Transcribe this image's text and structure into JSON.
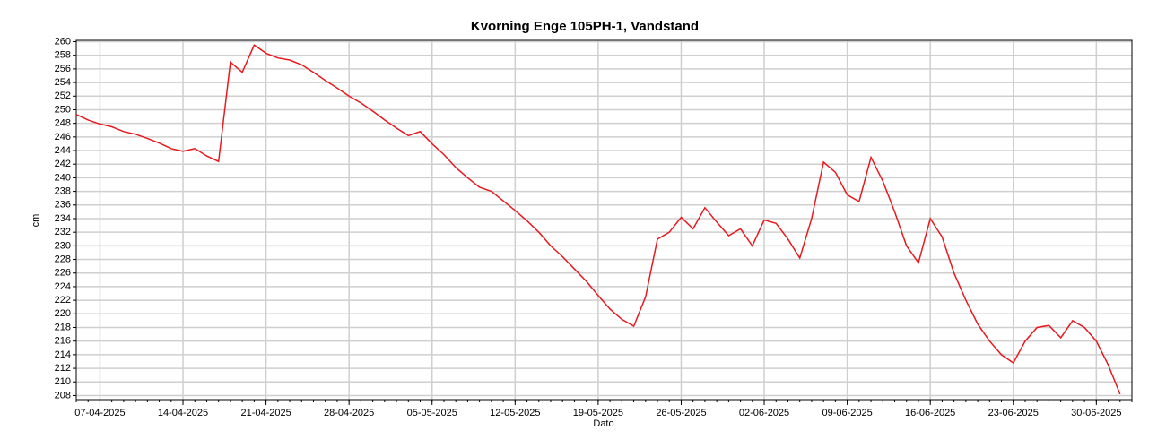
{
  "chart_data": {
    "type": "line",
    "title": "Kvorning Enge 105PH-1, Vandstand",
    "x_label": "Dato",
    "y_label": "cm",
    "x": [
      "05-04-2025",
      "06-04-2025",
      "07-04-2025",
      "08-04-2025",
      "09-04-2025",
      "10-04-2025",
      "11-04-2025",
      "12-04-2025",
      "13-04-2025",
      "14-04-2025",
      "15-04-2025",
      "16-04-2025",
      "17-04-2025",
      "18-04-2025",
      "19-04-2025",
      "20-04-2025",
      "21-04-2025",
      "22-04-2025",
      "23-04-2025",
      "24-04-2025",
      "25-04-2025",
      "26-04-2025",
      "27-04-2025",
      "28-04-2025",
      "29-04-2025",
      "30-04-2025",
      "01-05-2025",
      "02-05-2025",
      "03-05-2025",
      "04-05-2025",
      "05-05-2025",
      "06-05-2025",
      "07-05-2025",
      "08-05-2025",
      "09-05-2025",
      "10-05-2025",
      "11-05-2025",
      "12-05-2025",
      "13-05-2025",
      "14-05-2025",
      "15-05-2025",
      "16-05-2025",
      "17-05-2025",
      "18-05-2025",
      "19-05-2025",
      "20-05-2025",
      "21-05-2025",
      "22-05-2025",
      "23-05-2025",
      "24-05-2025",
      "25-05-2025",
      "26-05-2025",
      "27-05-2025",
      "28-05-2025",
      "29-05-2025",
      "30-05-2025",
      "31-05-2025",
      "01-06-2025",
      "02-06-2025",
      "03-06-2025",
      "04-06-2025",
      "05-06-2025",
      "06-06-2025",
      "07-06-2025",
      "08-06-2025",
      "09-06-2025",
      "10-06-2025",
      "11-06-2025",
      "12-06-2025",
      "13-06-2025",
      "14-06-2025",
      "15-06-2025",
      "16-06-2025",
      "17-06-2025",
      "18-06-2025",
      "19-06-2025",
      "20-06-2025",
      "21-06-2025",
      "22-06-2025",
      "23-06-2025",
      "24-06-2025",
      "25-06-2025",
      "26-06-2025",
      "27-06-2025",
      "28-06-2025",
      "29-06-2025",
      "30-06-2025",
      "01-07-2025",
      "02-07-2025"
    ],
    "series": [
      {
        "name": "Vandstand",
        "color": "#e8191e",
        "values": [
          249.3,
          248.5,
          247.9,
          247.5,
          246.8,
          246.4,
          245.8,
          245.1,
          244.3,
          243.9,
          244.3,
          243.2,
          242.4,
          257.0,
          255.5,
          259.5,
          258.3,
          257.6,
          257.3,
          256.6,
          255.5,
          254.3,
          253.2,
          252.0,
          251.0,
          249.8,
          248.5,
          247.3,
          246.2,
          246.8,
          245.0,
          243.4,
          241.5,
          240.0,
          238.6,
          238.0,
          236.6,
          235.2,
          233.7,
          232.0,
          230.0,
          228.4,
          226.6,
          224.8,
          222.7,
          220.7,
          219.2,
          218.2,
          222.5,
          231.0,
          232.0,
          234.2,
          232.5,
          235.6,
          233.5,
          231.5,
          232.5,
          230.0,
          233.8,
          233.3,
          231.0,
          228.2,
          234.0,
          242.3,
          240.8,
          237.5,
          236.5,
          243.0,
          239.5,
          235.0,
          230.0,
          227.5,
          234.0,
          231.3,
          226.0,
          222.0,
          218.5,
          216.0,
          214.0,
          212.8,
          216.0,
          218.0,
          218.3,
          216.5,
          219.0,
          218.0,
          216.0,
          212.5,
          208.2
        ]
      }
    ],
    "xlim": [
      "05-04-2025",
      "03-07-2025"
    ],
    "xticks": [
      "07-04-2025",
      "14-04-2025",
      "21-04-2025",
      "28-04-2025",
      "05-05-2025",
      "12-05-2025",
      "19-05-2025",
      "26-05-2025",
      "02-06-2025",
      "09-06-2025",
      "16-06-2025",
      "23-06-2025",
      "30-06-2025"
    ],
    "ylim": [
      207.4,
      260.2
    ],
    "yticks": [
      208,
      210,
      212,
      214,
      216,
      218,
      220,
      222,
      224,
      226,
      228,
      230,
      232,
      234,
      236,
      238,
      240,
      242,
      244,
      246,
      248,
      250,
      252,
      254,
      256,
      258,
      260
    ],
    "grid": true
  }
}
